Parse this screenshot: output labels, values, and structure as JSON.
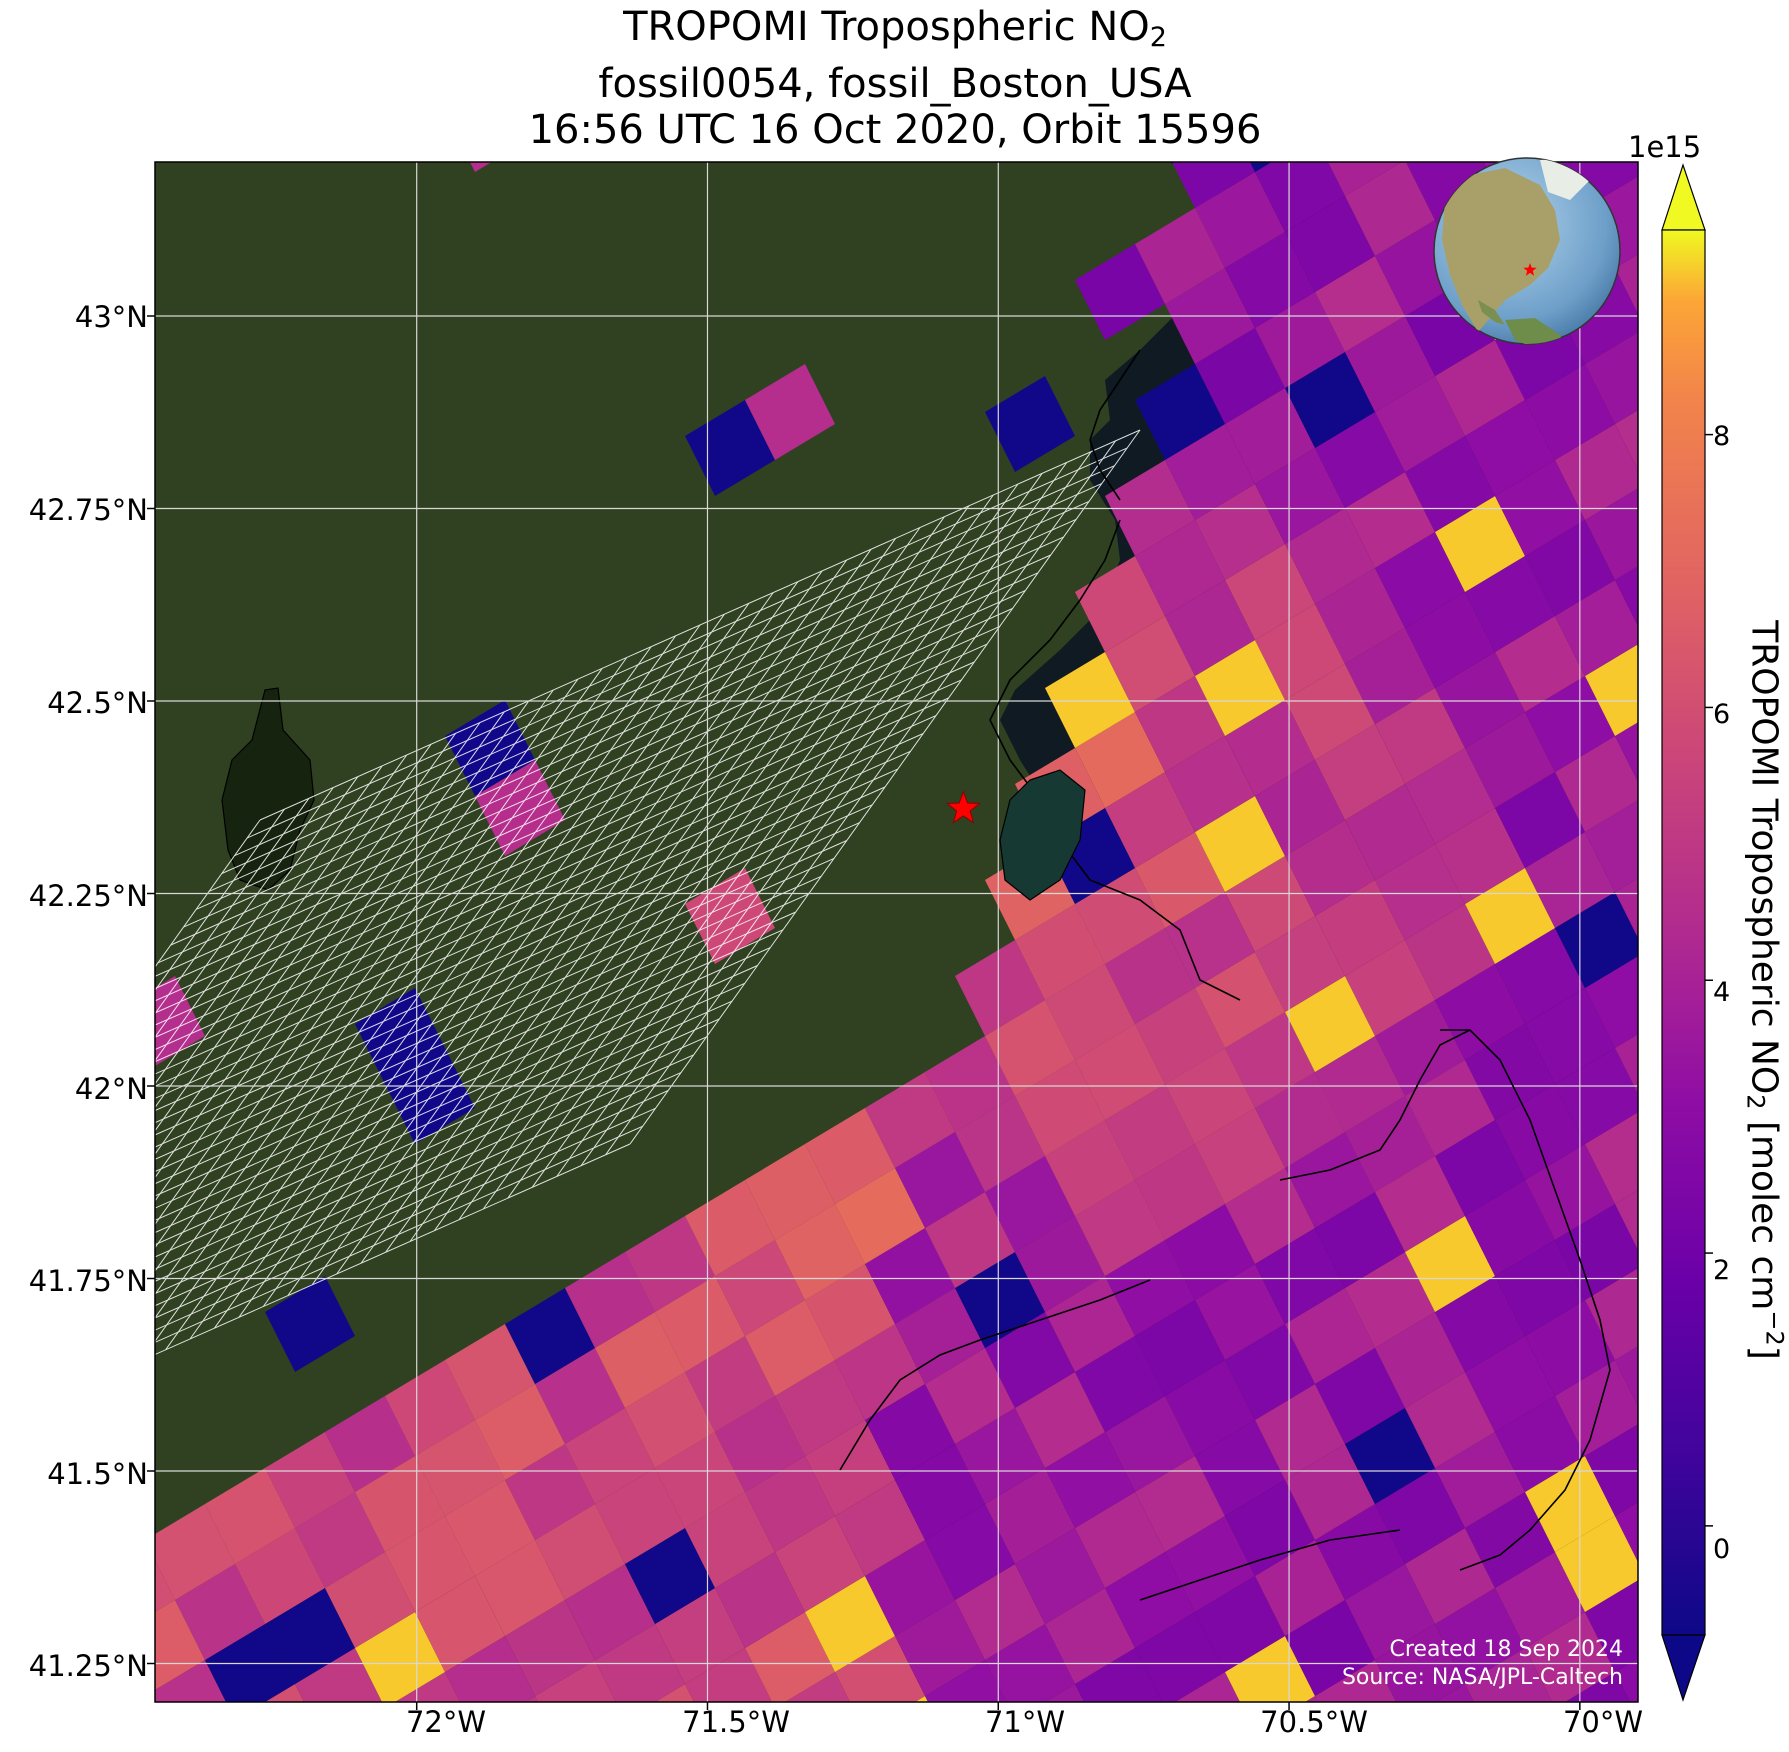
{
  "title": {
    "line1_prefix": "TROPOMI Tropospheric NO",
    "line1_sub": "2",
    "line2": "fossil0054, fossil_Boston_USA",
    "line3": "16:56 UTC 16 Oct 2020, Orbit 15596"
  },
  "map": {
    "lon_range": [
      -72.45,
      -69.9
    ],
    "lat_range": [
      41.2,
      43.2
    ],
    "lat_ticks": [
      "43°N",
      "42.75°N",
      "42.5°N",
      "42.25°N",
      "42°N",
      "41.75°N",
      "41.5°N",
      "41.25°N"
    ],
    "lon_ticks": [
      "72°W",
      "71.5°W",
      "71°W",
      "70.5°W",
      "70°W"
    ],
    "target_marker": {
      "lon": -71.06,
      "lat": 42.36,
      "color": "#ff0000",
      "shape": "star"
    },
    "colors": {
      "land": "#2f4120",
      "ocean": "#0f1a22",
      "gridline": "#d8d8d8",
      "target_grid": "#ffffff"
    }
  },
  "colorbar": {
    "multiplier": "1e15",
    "ticks": [
      "8",
      "6",
      "4",
      "2",
      "0"
    ],
    "range": [
      -0.8,
      9.5
    ],
    "label_prefix": "TROPOMI Tropospheric NO",
    "label_sub": "2",
    "label_units": " [molec cm",
    "label_sup": "−2",
    "label_end": "]",
    "colormap": "plasma"
  },
  "credits": {
    "created": "Created 18 Sep 2024",
    "source": "Source: NASA/JPL-Caltech"
  },
  "inset_globe": {
    "highlight": "eastern North America",
    "marker_color": "#ff0000"
  }
}
